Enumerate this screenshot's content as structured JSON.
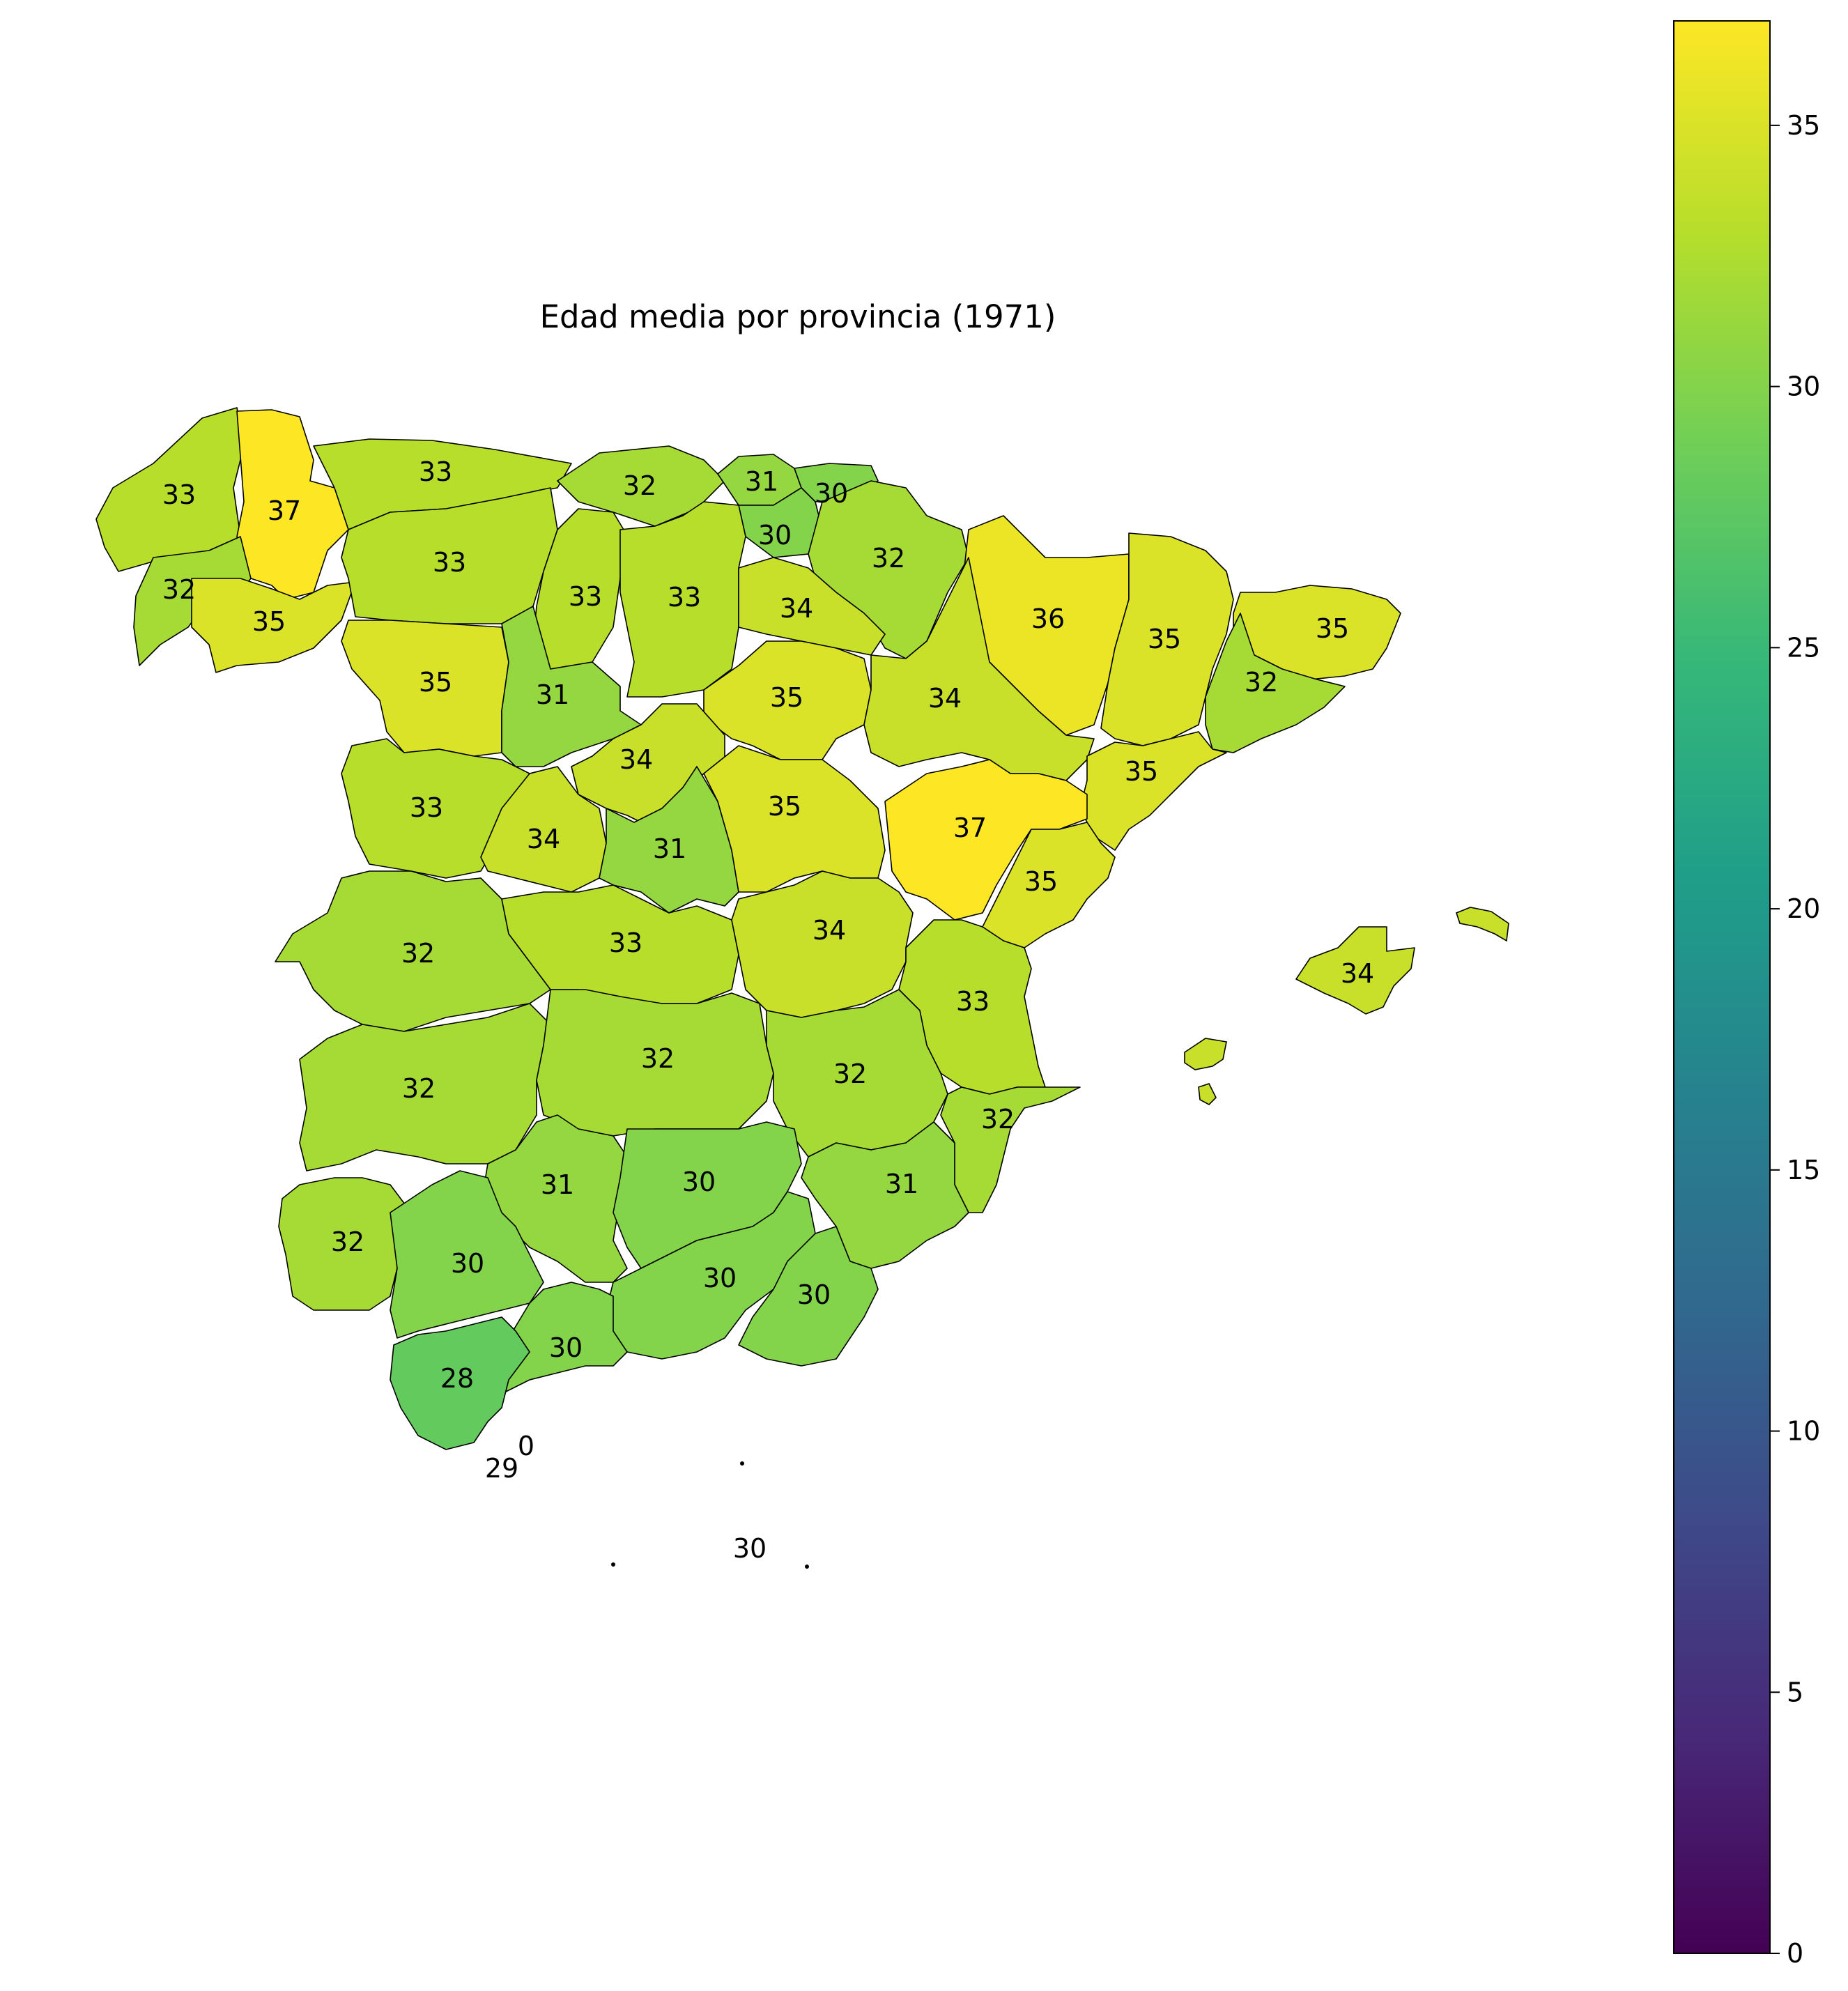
{
  "title": "Edad media por provincia (1971)",
  "colorbar": {
    "min": 0,
    "max": 37,
    "ticks": [
      0,
      5,
      10,
      15,
      20,
      25,
      30,
      35
    ],
    "tick_labels": [
      "0",
      "5",
      "10",
      "15",
      "20",
      "25",
      "30",
      "35"
    ],
    "colormap": "viridis",
    "stops": [
      "#440154",
      "#482878",
      "#3e4989",
      "#31688e",
      "#26828e",
      "#1f9e89",
      "#35b779",
      "#6ece58",
      "#b5de2b",
      "#fde725"
    ]
  },
  "provinces": [
    {
      "name": "A Coruña",
      "value": 33
    },
    {
      "name": "Lugo",
      "value": 37
    },
    {
      "name": "Asturias",
      "value": 33
    },
    {
      "name": "Cantabria",
      "value": 32
    },
    {
      "name": "Bizkaia",
      "value": 31
    },
    {
      "name": "Gipuzkoa",
      "value": 30
    },
    {
      "name": "Araba/Álava",
      "value": 30
    },
    {
      "name": "Navarra",
      "value": 32
    },
    {
      "name": "Pontevedra",
      "value": 32
    },
    {
      "name": "Ourense",
      "value": 35
    },
    {
      "name": "León",
      "value": 33
    },
    {
      "name": "Palencia",
      "value": 33
    },
    {
      "name": "Burgos",
      "value": 33
    },
    {
      "name": "La Rioja",
      "value": 34
    },
    {
      "name": "Huesca",
      "value": 36
    },
    {
      "name": "Lleida",
      "value": 35
    },
    {
      "name": "Girona",
      "value": 35
    },
    {
      "name": "Barcelona",
      "value": 32
    },
    {
      "name": "Zamora",
      "value": 35
    },
    {
      "name": "Valladolid",
      "value": 31
    },
    {
      "name": "Soria",
      "value": 35
    },
    {
      "name": "Zaragoza",
      "value": 34
    },
    {
      "name": "Segovia",
      "value": 34
    },
    {
      "name": "Tarragona",
      "value": 35
    },
    {
      "name": "Salamanca",
      "value": 33
    },
    {
      "name": "Ávila",
      "value": 34
    },
    {
      "name": "Madrid",
      "value": 31
    },
    {
      "name": "Guadalajara",
      "value": 35
    },
    {
      "name": "Teruel",
      "value": 37
    },
    {
      "name": "Castellón",
      "value": 35
    },
    {
      "name": "Cáceres",
      "value": 32
    },
    {
      "name": "Toledo",
      "value": 33
    },
    {
      "name": "Cuenca",
      "value": 34
    },
    {
      "name": "Valencia",
      "value": 33
    },
    {
      "name": "Illes Balears",
      "value": 34
    },
    {
      "name": "Badajoz",
      "value": 32
    },
    {
      "name": "Ciudad Real",
      "value": 32
    },
    {
      "name": "Albacete",
      "value": 32
    },
    {
      "name": "Alicante",
      "value": 32
    },
    {
      "name": "Córdoba",
      "value": 31
    },
    {
      "name": "Jaén",
      "value": 30
    },
    {
      "name": "Murcia",
      "value": 31
    },
    {
      "name": "Huelva",
      "value": 32
    },
    {
      "name": "Sevilla",
      "value": 30
    },
    {
      "name": "Granada",
      "value": 30
    },
    {
      "name": "Almería",
      "value": 30
    },
    {
      "name": "Málaga",
      "value": 30
    },
    {
      "name": "Cádiz",
      "value": 28
    },
    {
      "name": "Ceuta",
      "value": 0
    },
    {
      "name": "Ceuta/Gibraltar",
      "value": 29
    },
    {
      "name": "Melilla",
      "value": 30
    }
  ]
}
